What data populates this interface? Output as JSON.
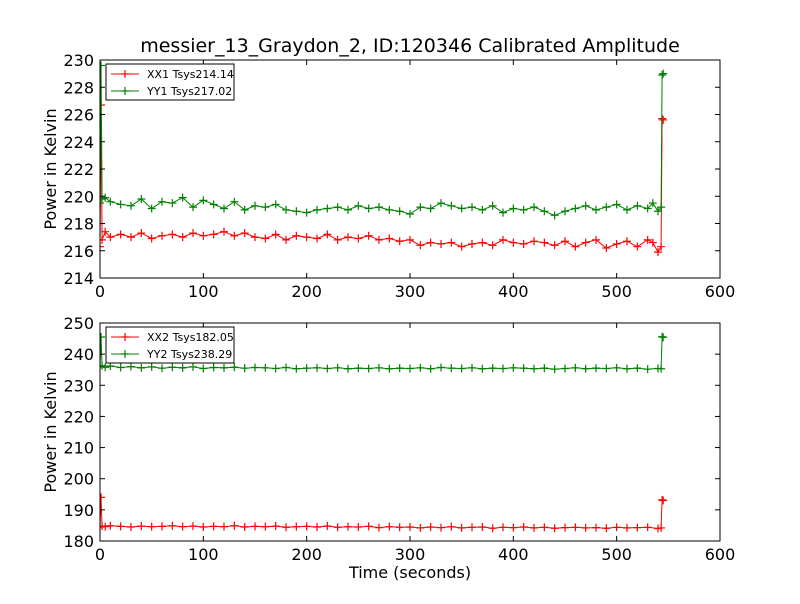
{
  "figure": {
    "title": "messier_13_Graydon_2, ID:120346 Calibrated Amplitude"
  },
  "chart_data": [
    {
      "type": "line",
      "title": "messier_13_Graydon_2, ID:120346 Calibrated Amplitude",
      "xlabel": "",
      "ylabel": "Power in Kelvin",
      "xlim": [
        0,
        600
      ],
      "ylim": [
        214,
        230
      ],
      "xticks": [
        0,
        100,
        200,
        300,
        400,
        500,
        600
      ],
      "yticks": [
        214,
        216,
        218,
        220,
        222,
        224,
        226,
        228,
        230
      ],
      "grid": false,
      "legend_position": "top-left",
      "marker": "plus",
      "series": [
        {
          "name": "XX1 Tsys214.14",
          "color": "#ff0000",
          "x": [
            0,
            1,
            2,
            5,
            10,
            20,
            30,
            40,
            50,
            60,
            70,
            80,
            90,
            100,
            110,
            120,
            130,
            140,
            150,
            160,
            170,
            180,
            190,
            200,
            210,
            220,
            230,
            240,
            250,
            260,
            270,
            280,
            290,
            300,
            310,
            320,
            330,
            340,
            350,
            360,
            370,
            380,
            390,
            400,
            410,
            420,
            430,
            440,
            450,
            460,
            470,
            480,
            490,
            500,
            510,
            520,
            530,
            535,
            540,
            543,
            544,
            545
          ],
          "y": [
            216.3,
            226.7,
            216.8,
            217.4,
            217.0,
            217.2,
            217.0,
            217.3,
            216.9,
            217.1,
            217.2,
            217.0,
            217.3,
            217.1,
            217.2,
            217.4,
            217.1,
            217.3,
            217.0,
            216.9,
            217.2,
            216.8,
            217.1,
            217.0,
            216.9,
            217.2,
            216.8,
            217.0,
            216.9,
            217.1,
            216.8,
            216.9,
            216.7,
            216.8,
            216.4,
            216.6,
            216.5,
            216.6,
            216.3,
            216.5,
            216.6,
            216.4,
            216.8,
            216.6,
            216.5,
            216.7,
            216.6,
            216.4,
            216.7,
            216.3,
            216.6,
            216.8,
            216.2,
            216.5,
            216.7,
            216.3,
            216.8,
            216.6,
            215.9,
            216.3,
            225.7,
            225.6
          ]
        },
        {
          "name": "YY1 Tsys217.02",
          "color": "#008000",
          "x": [
            0,
            1,
            2,
            5,
            10,
            20,
            30,
            40,
            50,
            60,
            70,
            80,
            90,
            100,
            110,
            120,
            130,
            140,
            150,
            160,
            170,
            180,
            190,
            200,
            210,
            220,
            230,
            240,
            250,
            260,
            270,
            280,
            290,
            300,
            310,
            320,
            330,
            340,
            350,
            360,
            370,
            380,
            390,
            400,
            410,
            420,
            430,
            440,
            450,
            460,
            470,
            480,
            490,
            500,
            510,
            520,
            530,
            535,
            540,
            543,
            544,
            545
          ],
          "y": [
            219.5,
            229.6,
            219.8,
            219.9,
            219.6,
            219.4,
            219.3,
            219.8,
            219.1,
            219.6,
            219.5,
            219.9,
            219.2,
            219.7,
            219.4,
            219.1,
            219.6,
            219.0,
            219.3,
            219.2,
            219.4,
            219.0,
            218.9,
            218.8,
            219.0,
            219.1,
            219.2,
            219.0,
            219.3,
            219.1,
            219.2,
            219.0,
            218.9,
            218.7,
            219.2,
            219.1,
            219.5,
            219.3,
            219.1,
            219.2,
            219.0,
            219.3,
            218.8,
            219.1,
            219.0,
            219.2,
            218.9,
            218.6,
            218.9,
            219.1,
            219.3,
            219.0,
            219.2,
            219.4,
            219.0,
            219.3,
            219.1,
            219.5,
            218.9,
            219.2,
            228.9,
            229.0
          ]
        }
      ]
    },
    {
      "type": "line",
      "title": "",
      "xlabel": "Time (seconds)",
      "ylabel": "Power in Kelvin",
      "xlim": [
        0,
        600
      ],
      "ylim": [
        180,
        250
      ],
      "xticks": [
        0,
        100,
        200,
        300,
        400,
        500,
        600
      ],
      "yticks": [
        180,
        190,
        200,
        210,
        220,
        230,
        240,
        250
      ],
      "grid": false,
      "legend_position": "top-left",
      "marker": "plus",
      "series": [
        {
          "name": "XX2 Tsys182.05",
          "color": "#ff0000",
          "x": [
            0,
            1,
            2,
            5,
            10,
            20,
            30,
            40,
            50,
            60,
            70,
            80,
            90,
            100,
            110,
            120,
            130,
            140,
            150,
            160,
            170,
            180,
            190,
            200,
            210,
            220,
            230,
            240,
            250,
            260,
            270,
            280,
            290,
            300,
            310,
            320,
            330,
            340,
            350,
            360,
            370,
            380,
            390,
            400,
            410,
            420,
            430,
            440,
            450,
            460,
            470,
            480,
            490,
            500,
            510,
            520,
            530,
            540,
            543,
            544,
            545
          ],
          "y": [
            184.5,
            194.0,
            184.8,
            184.6,
            184.9,
            184.7,
            184.5,
            184.8,
            184.6,
            184.7,
            184.9,
            184.6,
            184.8,
            184.5,
            184.7,
            184.6,
            184.9,
            184.5,
            184.7,
            184.6,
            184.8,
            184.4,
            184.6,
            184.7,
            184.5,
            184.8,
            184.4,
            184.6,
            184.5,
            184.7,
            184.3,
            184.6,
            184.4,
            184.5,
            184.2,
            184.5,
            184.3,
            184.6,
            184.2,
            184.4,
            184.5,
            184.1,
            184.4,
            184.3,
            184.5,
            184.2,
            184.4,
            184.1,
            184.3,
            184.4,
            184.2,
            184.3,
            184.1,
            184.4,
            184.2,
            184.3,
            184.4,
            184.0,
            184.2,
            193.2,
            193.0
          ]
        },
        {
          "name": "YY2 Tsys238.29",
          "color": "#008000",
          "x": [
            0,
            1,
            2,
            5,
            10,
            20,
            30,
            40,
            50,
            60,
            70,
            80,
            90,
            100,
            110,
            120,
            130,
            140,
            150,
            160,
            170,
            180,
            190,
            200,
            210,
            220,
            230,
            240,
            250,
            260,
            270,
            280,
            290,
            300,
            310,
            320,
            330,
            340,
            350,
            360,
            370,
            380,
            390,
            400,
            410,
            420,
            430,
            440,
            450,
            460,
            470,
            480,
            490,
            500,
            510,
            520,
            530,
            540,
            543,
            544,
            545
          ],
          "y": [
            236.0,
            245.5,
            236.3,
            235.8,
            236.2,
            235.7,
            236.0,
            235.6,
            235.9,
            235.5,
            235.8,
            235.6,
            235.9,
            235.4,
            235.7,
            235.6,
            235.8,
            235.5,
            235.7,
            235.6,
            235.4,
            235.7,
            235.3,
            235.5,
            235.6,
            235.4,
            235.6,
            235.3,
            235.5,
            235.4,
            235.6,
            235.3,
            235.5,
            235.4,
            235.6,
            235.3,
            235.7,
            235.5,
            235.4,
            235.6,
            235.3,
            235.5,
            235.4,
            235.6,
            235.5,
            235.3,
            235.5,
            235.2,
            235.4,
            235.6,
            235.3,
            235.5,
            235.4,
            235.6,
            235.3,
            235.5,
            235.2,
            235.4,
            235.3,
            245.6,
            245.4
          ]
        }
      ]
    }
  ]
}
